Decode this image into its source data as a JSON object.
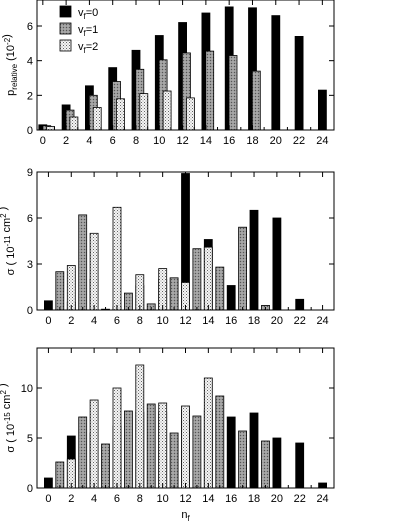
{
  "colors": {
    "v0": "#000000",
    "v1": "#8a8a8a",
    "v2": "#ededed"
  },
  "chart_data": [
    {
      "type": "bar",
      "id": "top",
      "ylabel": {
        "main": "p",
        "sub": "relative",
        "paren": "(10",
        "sup": "-2",
        "close": ")"
      },
      "xlim": [
        -0.5,
        25
      ],
      "ylim": [
        0,
        7.5
      ],
      "xticks": [
        0,
        2,
        4,
        6,
        8,
        10,
        12,
        14,
        16,
        18,
        20,
        22,
        24
      ],
      "yticks": [
        0,
        2,
        4,
        6
      ],
      "legend": [
        {
          "key": "v0",
          "text": "v",
          "sub": "f",
          "tail": "=0"
        },
        {
          "key": "v1",
          "text": "v",
          "sub": "f",
          "tail": "=1"
        },
        {
          "key": "v2",
          "text": "v",
          "sub": "f",
          "tail": "=2"
        }
      ],
      "series": [
        {
          "key": "v0",
          "name": "v_f=0",
          "x": [
            0,
            2,
            4,
            6,
            8,
            10,
            12,
            14,
            16,
            18,
            20,
            22,
            24
          ],
          "values": [
            0.3,
            1.45,
            2.55,
            3.6,
            4.6,
            5.45,
            6.2,
            6.75,
            7.1,
            7.05,
            6.6,
            5.4,
            2.3
          ]
        },
        {
          "key": "v1",
          "name": "v_f=1",
          "x": [
            0.33,
            2.33,
            4.33,
            6.33,
            8.33,
            10.33,
            12.33,
            14.33,
            16.33,
            18.33
          ],
          "values": [
            0.25,
            1.15,
            2.0,
            2.8,
            3.5,
            4.05,
            4.45,
            4.55,
            4.3,
            3.4
          ]
        },
        {
          "key": "v2",
          "name": "v_f=2",
          "x": [
            0.67,
            2.67,
            4.67,
            6.67,
            8.67,
            10.67,
            12.67
          ],
          "values": [
            0.2,
            0.75,
            1.3,
            1.8,
            2.1,
            2.25,
            1.85
          ]
        }
      ]
    },
    {
      "type": "bar",
      "id": "mid",
      "ylabel": {
        "main": "σ ( 10",
        "sup": "-11",
        "mid": " cm",
        "sup2": "2",
        "close": " )"
      },
      "xlim": [
        -1,
        25
      ],
      "ylim": [
        0,
        9
      ],
      "xticks": [
        0,
        2,
        4,
        6,
        8,
        10,
        12,
        14,
        16,
        18,
        20,
        22,
        24
      ],
      "yticks": [
        0,
        3,
        6,
        9
      ],
      "series": [
        {
          "key": "v0",
          "name": "v_f=0",
          "x": [
            0,
            2,
            4,
            6,
            8,
            10,
            12,
            14,
            16,
            18,
            20,
            22
          ],
          "values": [
            0.6,
            0.5,
            2.0,
            0.2,
            1.6,
            2.0,
            8.9,
            4.6,
            1.6,
            6.5,
            6.0,
            0.7
          ]
        },
        {
          "key": "v1",
          "name": "v_f=1",
          "x": [
            1,
            3,
            5,
            7,
            9,
            11,
            13,
            15,
            17,
            19
          ],
          "values": [
            2.5,
            6.2,
            0.05,
            1.1,
            0.4,
            2.1,
            4.0,
            2.8,
            5.4,
            0.3
          ]
        },
        {
          "key": "v2",
          "name": "v_f=2",
          "x": [
            2,
            4,
            6,
            8,
            10,
            12,
            14
          ],
          "values": [
            2.9,
            5.0,
            6.7,
            2.3,
            2.7,
            1.8,
            4.1
          ]
        }
      ]
    },
    {
      "type": "bar",
      "id": "bottom",
      "xlabel": {
        "main": "n",
        "sub": "f"
      },
      "ylabel": {
        "main": "σ ( 10",
        "sup": "-15",
        "mid": " cm",
        "sup2": "2",
        "close": " )"
      },
      "xlim": [
        -1,
        25
      ],
      "ylim": [
        0,
        14
      ],
      "xticks": [
        0,
        2,
        4,
        6,
        8,
        10,
        12,
        14,
        16,
        18,
        20,
        22,
        24
      ],
      "yticks": [
        0,
        5,
        10
      ],
      "series": [
        {
          "key": "v0",
          "name": "v_f=0",
          "x": [
            0,
            2,
            4,
            6,
            8,
            10,
            12,
            14,
            16,
            18,
            20,
            22,
            24
          ],
          "values": [
            1.0,
            5.2,
            5.5,
            6.2,
            7.6,
            7.6,
            7.8,
            7.8,
            7.1,
            7.5,
            5.0,
            4.5,
            0.5
          ]
        },
        {
          "key": "v1",
          "name": "v_f=1",
          "x": [
            1,
            3,
            5,
            7,
            9,
            11,
            13,
            15,
            17,
            19
          ],
          "values": [
            2.6,
            7.1,
            4.4,
            7.7,
            8.4,
            5.5,
            7.2,
            9.2,
            5.7,
            4.7
          ]
        },
        {
          "key": "v2",
          "name": "v_f=2",
          "x": [
            2,
            4,
            6,
            8,
            10,
            12,
            14
          ],
          "values": [
            2.9,
            8.8,
            10.0,
            12.3,
            8.5,
            8.2,
            11.0
          ]
        }
      ]
    }
  ]
}
